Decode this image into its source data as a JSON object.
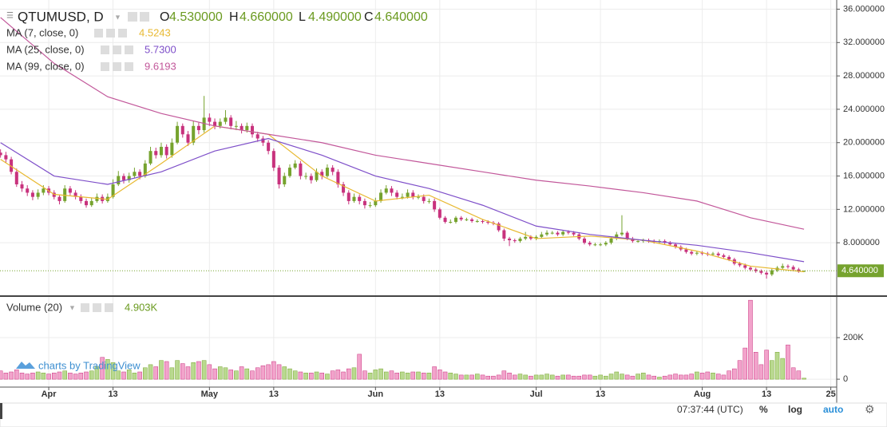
{
  "header": {
    "symbol": "QTUMUSD, D",
    "o_label": "O",
    "o": "4.530000",
    "h_label": "H",
    "h": "4.660000",
    "l_label": "L",
    "l": "4.490000",
    "c_label": "C",
    "c": "4.640000"
  },
  "chart_data": {
    "type": "candlestick",
    "up_color": "#76a32e",
    "down_color": "#c8327d",
    "grid": true,
    "xlim": [
      -0.1,
      156.1
    ],
    "xticks": [
      {
        "value": 9,
        "label": "Apr"
      },
      {
        "value": 21,
        "label": "13"
      },
      {
        "value": 39,
        "label": "May"
      },
      {
        "value": 51,
        "label": "13"
      },
      {
        "value": 70,
        "label": "Jun"
      },
      {
        "value": 82,
        "label": "13"
      },
      {
        "value": 100,
        "label": "Jul"
      },
      {
        "value": 112,
        "label": "13"
      },
      {
        "value": 131,
        "label": "Aug"
      },
      {
        "value": 143,
        "label": "13"
      },
      {
        "value": 155,
        "label": "25"
      }
    ],
    "ylim": [
      1.7,
      37.1
    ],
    "yticks": [
      {
        "value": 8,
        "label": "8.000000"
      },
      {
        "value": 12,
        "label": "12.000000"
      },
      {
        "value": 16,
        "label": "16.000000"
      },
      {
        "value": 20,
        "label": "20.000000"
      },
      {
        "value": 24,
        "label": "24.000000"
      },
      {
        "value": 28,
        "label": "28.000000"
      },
      {
        "value": 32,
        "label": "32.000000"
      },
      {
        "value": 36,
        "label": "36.000000"
      }
    ],
    "last_price": {
      "value": 4.64,
      "label": "4.640000"
    },
    "candles": [
      [
        18.8,
        19.2,
        18.2,
        18.5
      ],
      [
        18.5,
        18.9,
        17.6,
        18
      ],
      [
        18,
        18.3,
        16.2,
        16.5
      ],
      [
        16.5,
        16.9,
        14.7,
        15
      ],
      [
        15,
        15.4,
        14.1,
        14.5
      ],
      [
        14.5,
        14.9,
        13.6,
        14
      ],
      [
        14,
        14.3,
        13.1,
        13.5
      ],
      [
        13.5,
        14.4,
        13.2,
        14
      ],
      [
        14,
        14.9,
        13.7,
        14.5
      ],
      [
        14.5,
        14.8,
        13.7,
        14
      ],
      [
        14,
        14.3,
        13.2,
        13.5
      ],
      [
        13.5,
        13.8,
        12.6,
        13
      ],
      [
        13,
        14.9,
        12.8,
        14.5
      ],
      [
        14.5,
        14.8,
        13.7,
        14
      ],
      [
        14,
        14.3,
        13.2,
        13.5
      ],
      [
        13.5,
        13.8,
        12.7,
        13
      ],
      [
        13,
        13.3,
        12.2,
        12.5
      ],
      [
        12.5,
        13.4,
        12.3,
        13
      ],
      [
        13,
        13.9,
        12.8,
        13.5
      ],
      [
        13.5,
        13.8,
        12.7,
        13
      ],
      [
        13,
        13.9,
        12.8,
        13.5
      ],
      [
        13.5,
        15.6,
        13.3,
        15
      ],
      [
        15,
        16.6,
        14.8,
        16
      ],
      [
        16,
        16.3,
        15.1,
        15.5
      ],
      [
        15.5,
        16.4,
        15.2,
        16
      ],
      [
        16,
        17,
        15.8,
        16.5
      ],
      [
        16.5,
        16.8,
        15.6,
        16
      ],
      [
        16,
        17.9,
        15.8,
        17.5
      ],
      [
        17.5,
        19.5,
        17.3,
        19
      ],
      [
        19,
        19.4,
        18.1,
        18.5
      ],
      [
        18.5,
        20,
        18.2,
        19.5
      ],
      [
        19.5,
        19.8,
        18.1,
        18.5
      ],
      [
        18.5,
        20.5,
        18.2,
        20
      ],
      [
        20,
        22.5,
        19.8,
        22
      ],
      [
        22,
        22.3,
        20.6,
        21
      ],
      [
        21,
        21.4,
        19.6,
        20
      ],
      [
        20,
        22.6,
        19.7,
        22
      ],
      [
        22,
        22.4,
        21,
        21.5
      ],
      [
        21.5,
        25.6,
        21.2,
        23
      ],
      [
        23,
        23.5,
        22,
        22.5
      ],
      [
        22.5,
        22.9,
        21.6,
        22
      ],
      [
        22,
        22.9,
        21.7,
        22.5
      ],
      [
        22.5,
        23.9,
        22.2,
        23
      ],
      [
        23,
        23.3,
        21.6,
        22
      ],
      [
        22,
        22.6,
        21.5,
        22
      ],
      [
        22,
        22.3,
        21.1,
        21.5
      ],
      [
        21.5,
        22.4,
        21.2,
        22
      ],
      [
        22,
        22.3,
        20.6,
        21
      ],
      [
        21,
        21.3,
        20.1,
        20.5
      ],
      [
        20.5,
        20.8,
        19.6,
        20
      ],
      [
        20,
        20.3,
        18.6,
        19
      ],
      [
        19,
        19.3,
        16.6,
        17
      ],
      [
        17,
        17.3,
        14.5,
        15
      ],
      [
        15,
        16.4,
        14.7,
        16
      ],
      [
        16,
        17.4,
        15.8,
        17
      ],
      [
        17,
        17.9,
        16.8,
        17.5
      ],
      [
        17.5,
        17.8,
        15.6,
        16
      ],
      [
        16,
        16.4,
        15.6,
        16
      ],
      [
        16,
        16.3,
        15.1,
        15.5
      ],
      [
        15.5,
        16.9,
        15.3,
        16.5
      ],
      [
        16.5,
        16.8,
        15.6,
        16
      ],
      [
        16,
        17.4,
        15.8,
        17
      ],
      [
        17,
        17.3,
        16.1,
        16.5
      ],
      [
        16.5,
        16.8,
        14.6,
        15
      ],
      [
        15,
        15.3,
        13.6,
        14
      ],
      [
        14,
        14.3,
        12.6,
        13
      ],
      [
        13,
        13.9,
        12.8,
        13.5
      ],
      [
        13.5,
        13.8,
        12.6,
        13
      ],
      [
        13,
        13.3,
        12.1,
        12.5
      ],
      [
        12.5,
        12.9,
        12.2,
        12.5
      ],
      [
        12.5,
        13.4,
        12.3,
        13
      ],
      [
        13,
        14.4,
        12.8,
        14
      ],
      [
        14,
        14.9,
        13.8,
        14.5
      ],
      [
        14.5,
        14.8,
        13.6,
        14
      ],
      [
        14,
        14.3,
        13.2,
        13.5
      ],
      [
        13.5,
        13.9,
        13.2,
        13.5
      ],
      [
        13.5,
        14.4,
        13.3,
        14
      ],
      [
        14,
        14.3,
        13.2,
        13.5
      ],
      [
        13.5,
        13.8,
        13.2,
        13.5
      ],
      [
        13.5,
        13.8,
        12.7,
        13
      ],
      [
        13,
        13.3,
        12.7,
        13
      ],
      [
        13,
        13.3,
        11.7,
        12
      ],
      [
        12,
        12.2,
        10.8,
        11
      ],
      [
        11,
        11.2,
        10.3,
        10.5
      ],
      [
        10.5,
        10.8,
        10.3,
        10.5
      ],
      [
        10.5,
        11.2,
        10.3,
        11
      ],
      [
        11,
        11.2,
        10.6,
        10.8
      ],
      [
        10.8,
        11,
        10.6,
        10.8
      ],
      [
        10.8,
        11,
        10.4,
        10.6
      ],
      [
        10.6,
        10.8,
        10.4,
        10.6
      ],
      [
        10.6,
        10.8,
        10.3,
        10.5
      ],
      [
        10.5,
        10.7,
        10.2,
        10.4
      ],
      [
        10.4,
        10.6,
        10.1,
        10.3
      ],
      [
        10.3,
        10.5,
        9.3,
        9.5
      ],
      [
        9.5,
        9.7,
        8.2,
        8.5
      ],
      [
        8.5,
        8.7,
        7.6,
        8.3
      ],
      [
        8.3,
        8.5,
        8,
        8.2
      ],
      [
        8.2,
        8.7,
        8,
        8.5
      ],
      [
        8.5,
        9.3,
        8.3,
        8.7
      ],
      [
        8.7,
        8.9,
        8.3,
        8.5
      ],
      [
        8.5,
        8.9,
        8.3,
        8.7
      ],
      [
        8.7,
        9.3,
        8.5,
        9
      ],
      [
        9,
        9.5,
        8.8,
        9.2
      ],
      [
        9.2,
        9.4,
        9,
        9.2
      ],
      [
        9.2,
        9.4,
        8.8,
        9
      ],
      [
        9,
        9.5,
        8.8,
        9.3
      ],
      [
        9.3,
        9.5,
        9,
        9.2
      ],
      [
        9.2,
        9.4,
        8.8,
        9
      ],
      [
        9,
        9.2,
        8.3,
        8.5
      ],
      [
        8.5,
        8.7,
        7.8,
        8
      ],
      [
        8,
        8.2,
        7.6,
        7.8
      ],
      [
        7.8,
        8,
        7.6,
        7.8
      ],
      [
        7.8,
        8,
        7.6,
        7.8
      ],
      [
        7.8,
        8.2,
        7.6,
        8
      ],
      [
        8,
        8.7,
        7.8,
        8.5
      ],
      [
        8.5,
        9.3,
        8.3,
        9
      ],
      [
        9,
        11.3,
        8.8,
        9.2
      ],
      [
        9.2,
        9.4,
        8.3,
        8.5
      ],
      [
        8.5,
        8.7,
        8,
        8.2
      ],
      [
        8.2,
        8.4,
        8,
        8.2
      ],
      [
        8.2,
        8.5,
        8,
        8.3
      ],
      [
        8.3,
        8.5,
        8,
        8.2
      ],
      [
        8.2,
        8.4,
        7.9,
        8.1
      ],
      [
        8.1,
        8.4,
        7.9,
        8.2
      ],
      [
        8.2,
        8.4,
        7.8,
        8
      ],
      [
        8,
        8.2,
        7.6,
        7.8
      ],
      [
        7.8,
        8,
        7.3,
        7.5
      ],
      [
        7.5,
        7.7,
        7,
        7.2
      ],
      [
        7.2,
        7.4,
        6.7,
        6.9
      ],
      [
        6.9,
        7.1,
        6.5,
        6.7
      ],
      [
        6.7,
        7,
        6.5,
        6.8
      ],
      [
        6.8,
        7,
        6.5,
        6.7
      ],
      [
        6.7,
        6.9,
        6.4,
        6.6
      ],
      [
        6.6,
        6.9,
        6.4,
        6.7
      ],
      [
        6.7,
        6.9,
        6.3,
        6.5
      ],
      [
        6.5,
        6.7,
        6.1,
        6.3
      ],
      [
        6.3,
        6.5,
        5.8,
        6
      ],
      [
        6,
        6.2,
        5.3,
        5.5
      ],
      [
        5.5,
        5.7,
        5.1,
        5.3
      ],
      [
        5.3,
        5.5,
        4.8,
        5
      ],
      [
        5,
        5.2,
        4.6,
        4.8
      ],
      [
        4.8,
        5,
        4.4,
        4.6
      ],
      [
        4.6,
        4.8,
        4.2,
        4.4
      ],
      [
        4.4,
        4.6,
        3.7,
        4.2
      ],
      [
        4.2,
        4.9,
        4,
        4.7
      ],
      [
        4.7,
        5.2,
        4.5,
        5
      ],
      [
        5,
        5.5,
        4.8,
        5.2
      ],
      [
        5.2,
        5.4,
        4.9,
        5.1
      ],
      [
        5.1,
        5.3,
        4.6,
        4.8
      ],
      [
        4.8,
        5,
        4.4,
        4.53
      ],
      [
        4.53,
        4.66,
        4.49,
        4.64
      ]
    ],
    "series": [
      {
        "name": "MA (7, close, 0)",
        "last": "4.5243",
        "color": "#e8b931",
        "x": [
          0,
          10,
          20,
          30,
          40,
          50,
          60,
          70,
          80,
          90,
          100,
          110,
          120,
          130,
          140,
          150
        ],
        "values": [
          18,
          13.8,
          13.2,
          17.5,
          22,
          21,
          16,
          13,
          13.7,
          10.8,
          8.5,
          8.8,
          8.3,
          7,
          5.2,
          4.52
        ]
      },
      {
        "name": "MA (25, close, 0)",
        "last": "5.7300",
        "color": "#7e4fc9",
        "x": [
          0,
          10,
          20,
          30,
          40,
          50,
          60,
          70,
          80,
          90,
          100,
          110,
          120,
          130,
          140,
          150
        ],
        "values": [
          20,
          16,
          15,
          16.5,
          19,
          20.5,
          18.5,
          16,
          14.5,
          12.5,
          10,
          9,
          8.3,
          7.7,
          6.8,
          5.73
        ]
      },
      {
        "name": "MA (99, close, 0)",
        "last": "9.6193",
        "color": "#c2579a",
        "x": [
          0,
          10,
          20,
          30,
          40,
          50,
          60,
          70,
          80,
          90,
          100,
          110,
          120,
          130,
          140,
          150
        ],
        "values": [
          35,
          29.5,
          25.5,
          23.5,
          22,
          21,
          20,
          18.5,
          17.5,
          16.5,
          15.5,
          14.8,
          14,
          13,
          11,
          9.62
        ]
      }
    ],
    "volume": {
      "title": "Volume (20)",
      "last": "4.903K",
      "up_color": "#b9d98f",
      "down_color": "#f2a3cb",
      "ylim": [
        -38,
        396
      ],
      "yticks": [
        0,
        {
          "value": 200,
          "label": "200K"
        }
      ],
      "values": [
        40,
        30,
        35,
        45,
        30,
        25,
        30,
        35,
        30,
        25,
        30,
        35,
        40,
        30,
        25,
        30,
        35,
        40,
        60,
        105,
        95,
        80,
        40,
        35,
        45,
        30,
        35,
        55,
        70,
        60,
        90,
        85,
        55,
        90,
        75,
        60,
        80,
        85,
        90,
        70,
        50,
        60,
        55,
        45,
        40,
        60,
        50,
        40,
        55,
        65,
        70,
        85,
        70,
        60,
        50,
        40,
        35,
        30,
        30,
        35,
        30,
        25,
        40,
        45,
        35,
        50,
        55,
        120,
        40,
        30,
        45,
        50,
        35,
        40,
        30,
        35,
        30,
        35,
        35,
        30,
        30,
        60,
        45,
        35,
        30,
        25,
        20,
        20,
        20,
        25,
        20,
        15,
        15,
        20,
        40,
        30,
        20,
        25,
        20,
        15,
        20,
        20,
        25,
        20,
        15,
        20,
        20,
        15,
        15,
        20,
        20,
        15,
        20,
        15,
        25,
        35,
        25,
        20,
        15,
        25,
        30,
        20,
        15,
        10,
        15,
        20,
        25,
        20,
        20,
        25,
        35,
        30,
        35,
        30,
        25,
        20,
        40,
        50,
        90,
        150,
        380,
        130,
        70,
        140,
        90,
        130,
        100,
        165,
        55,
        40,
        4.903
      ]
    },
    "watermark": "charts by TradingView"
  },
  "footer": {
    "time": "07:37:44 (UTC)",
    "percent": "%",
    "log": "log",
    "auto": "auto"
  }
}
